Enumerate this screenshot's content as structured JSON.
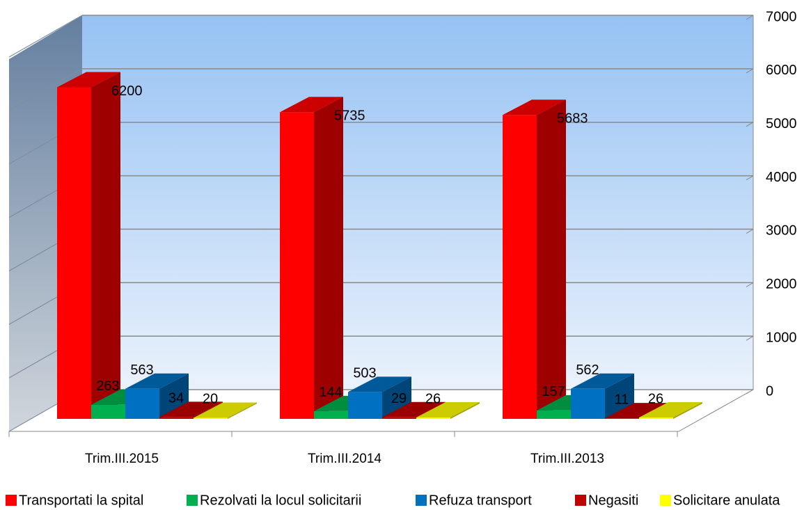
{
  "chart_data": {
    "type": "bar3d",
    "categories": [
      "Trim.III.2015",
      "Trim.III.2014",
      "Trim.III.2013"
    ],
    "series": [
      {
        "name": "Transportati la spital",
        "color": "#ff0000",
        "values": [
          6200,
          5735,
          5683
        ]
      },
      {
        "name": "Rezolvati la locul solicitarii",
        "color": "#00b050",
        "values": [
          263,
          144,
          157
        ]
      },
      {
        "name": "Refuza transport",
        "color": "#0070c0",
        "values": [
          563,
          503,
          562
        ]
      },
      {
        "name": "Negasiti",
        "color": "#c00000",
        "values": [
          34,
          29,
          11
        ]
      },
      {
        "name": "Solicitare anulata",
        "color": "#ffff00",
        "values": [
          20,
          26,
          26
        ]
      }
    ],
    "ylim": [
      0,
      7000
    ],
    "yticks": [
      0,
      1000,
      2000,
      3000,
      4000,
      5000,
      6000,
      7000
    ],
    "grid": true,
    "legend": "bottom"
  }
}
